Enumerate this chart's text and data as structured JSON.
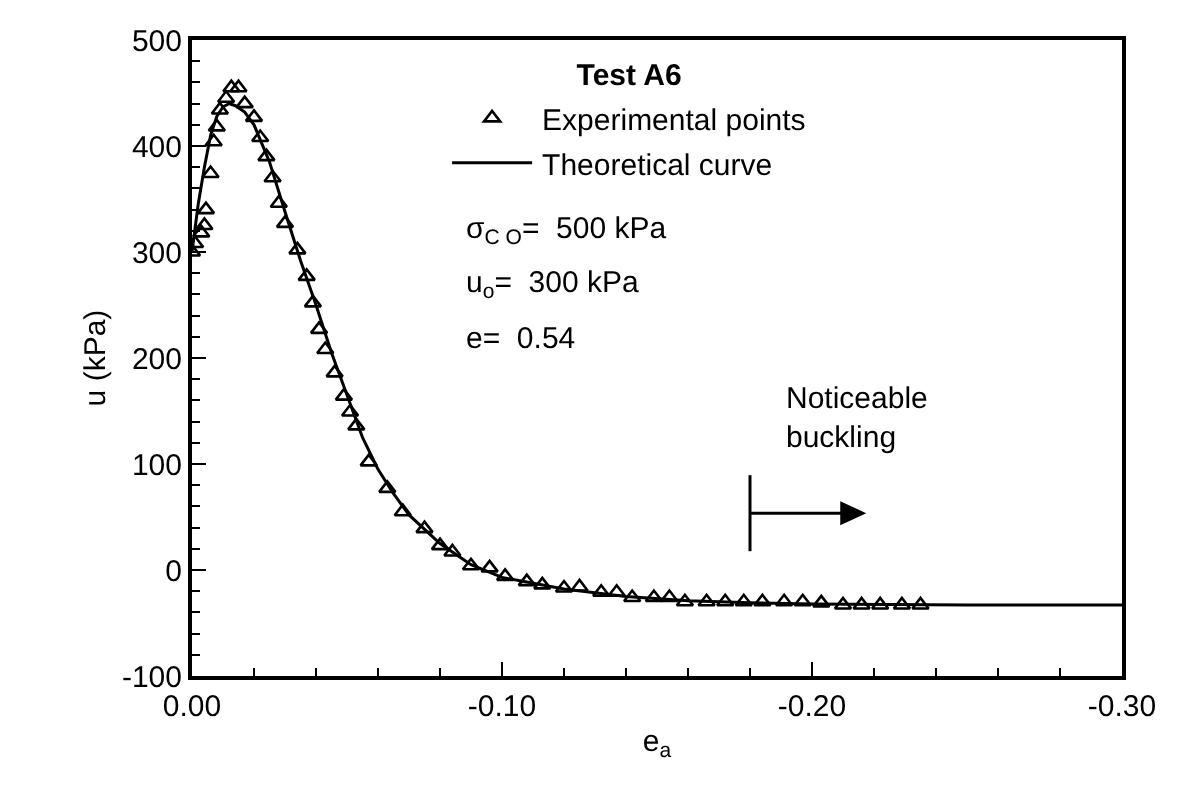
{
  "chart_data": {
    "type": "line",
    "xlabel": "e$_{a}$",
    "ylabel": "u (kPa)",
    "legend_title": "Test A6",
    "xlim": [
      0,
      -0.3
    ],
    "ylim": [
      -100,
      500
    ],
    "xticks": [
      {
        "value": 0,
        "label": "0.00"
      },
      {
        "value": -0.02,
        "label": null
      },
      {
        "value": -0.04,
        "label": null
      },
      {
        "value": -0.06,
        "label": null
      },
      {
        "value": -0.08,
        "label": null
      },
      {
        "value": -0.1,
        "label": "-0.10"
      },
      {
        "value": -0.12,
        "label": null
      },
      {
        "value": -0.14,
        "label": null
      },
      {
        "value": -0.16,
        "label": null
      },
      {
        "value": -0.18,
        "label": null
      },
      {
        "value": -0.2,
        "label": "-0.20"
      },
      {
        "value": -0.22,
        "label": null
      },
      {
        "value": -0.24,
        "label": null
      },
      {
        "value": -0.26,
        "label": null
      },
      {
        "value": -0.28,
        "label": null
      },
      {
        "value": -0.3,
        "label": "-0.30"
      }
    ],
    "yticks": [
      -100,
      {
        "value": -80,
        "label": null
      },
      {
        "value": -60,
        "label": null
      },
      {
        "value": -40,
        "label": null
      },
      {
        "value": -20,
        "label": null
      },
      0,
      {
        "value": 20,
        "label": null
      },
      {
        "value": 40,
        "label": null
      },
      {
        "value": 60,
        "label": null
      },
      {
        "value": 80,
        "label": null
      },
      100,
      {
        "value": 120,
        "label": null
      },
      {
        "value": 140,
        "label": null
      },
      {
        "value": 160,
        "label": null
      },
      {
        "value": 180,
        "label": null
      },
      200,
      {
        "value": 220,
        "label": null
      },
      {
        "value": 240,
        "label": null
      },
      {
        "value": 260,
        "label": null
      },
      {
        "value": 280,
        "label": null
      },
      300,
      {
        "value": 320,
        "label": null
      },
      {
        "value": 340,
        "label": null
      },
      {
        "value": 360,
        "label": null
      },
      {
        "value": 380,
        "label": null
      },
      400,
      {
        "value": 420,
        "label": null
      },
      {
        "value": 440,
        "label": null
      },
      {
        "value": 460,
        "label": null
      },
      {
        "value": 480,
        "label": null
      },
      500
    ],
    "grid": false,
    "legend": "top",
    "series": [
      {
        "name": "Experimental points",
        "type": "scatter",
        "marker": "triangle",
        "color": "#000000",
        "x": [
          0,
          -0.001,
          -0.003,
          -0.004,
          -0.0045,
          -0.006,
          -0.007,
          -0.008,
          -0.009,
          -0.011,
          -0.0127,
          -0.015,
          -0.017,
          -0.02,
          -0.022,
          -0.024,
          -0.026,
          -0.028,
          -0.03,
          -0.034,
          -0.037,
          -0.039,
          -0.041,
          -0.043,
          -0.046,
          -0.049,
          -0.051,
          -0.053,
          -0.057,
          -0.063,
          -0.068,
          -0.075,
          -0.08,
          -0.084,
          -0.09,
          -0.096,
          -0.101,
          -0.108,
          -0.113,
          -0.12,
          -0.125,
          -0.132,
          -0.137,
          -0.142,
          -0.149,
          -0.154,
          -0.159,
          -0.166,
          -0.172,
          -0.178,
          -0.184,
          -0.191,
          -0.197,
          -0.203,
          -0.21,
          -0.216,
          -0.222,
          -0.229,
          -0.235
        ],
        "values": [
          300,
          308,
          318,
          325,
          340,
          374,
          404,
          418,
          434,
          445,
          455,
          455,
          440,
          427,
          408,
          390,
          370,
          346,
          327,
          302,
          277,
          252,
          227,
          208,
          186,
          164,
          149,
          136,
          102,
          77,
          55,
          39,
          23,
          17,
          4,
          2,
          -6,
          -11,
          -14,
          -17,
          -16,
          -21,
          -21,
          -26,
          -26,
          -26,
          -30,
          -30,
          -30,
          -30,
          -30,
          -30,
          -30,
          -31,
          -33,
          -33,
          -33,
          -33,
          -33
        ]
      },
      {
        "name": "Theoretical curve",
        "type": "line",
        "marker": "none",
        "line_style": "solid",
        "color": "#000000",
        "x": [
          0,
          -0.002,
          -0.004,
          -0.006,
          -0.008,
          -0.01,
          -0.012,
          -0.014,
          -0.017,
          -0.02,
          -0.025,
          -0.03,
          -0.035,
          -0.04,
          -0.045,
          -0.05,
          -0.055,
          -0.06,
          -0.065,
          -0.07,
          -0.08,
          -0.09,
          -0.1,
          -0.12,
          -0.14,
          -0.16,
          -0.18,
          -0.2,
          -0.25,
          -0.3
        ],
        "values": [
          300,
          345,
          380,
          410,
          428,
          437,
          440,
          438,
          432,
          420,
          385,
          338,
          292,
          250,
          205,
          165,
          125,
          95,
          72,
          52,
          25,
          5,
          -7,
          -18,
          -25,
          -29,
          -31,
          -32,
          -33,
          -33
        ]
      }
    ],
    "annotations": [
      "σ$_{C O}$=  500 kPa",
      "u$_{o}$=  300 kPa",
      "e=  0.54",
      "Noticeable\nbuckling"
    ]
  }
}
